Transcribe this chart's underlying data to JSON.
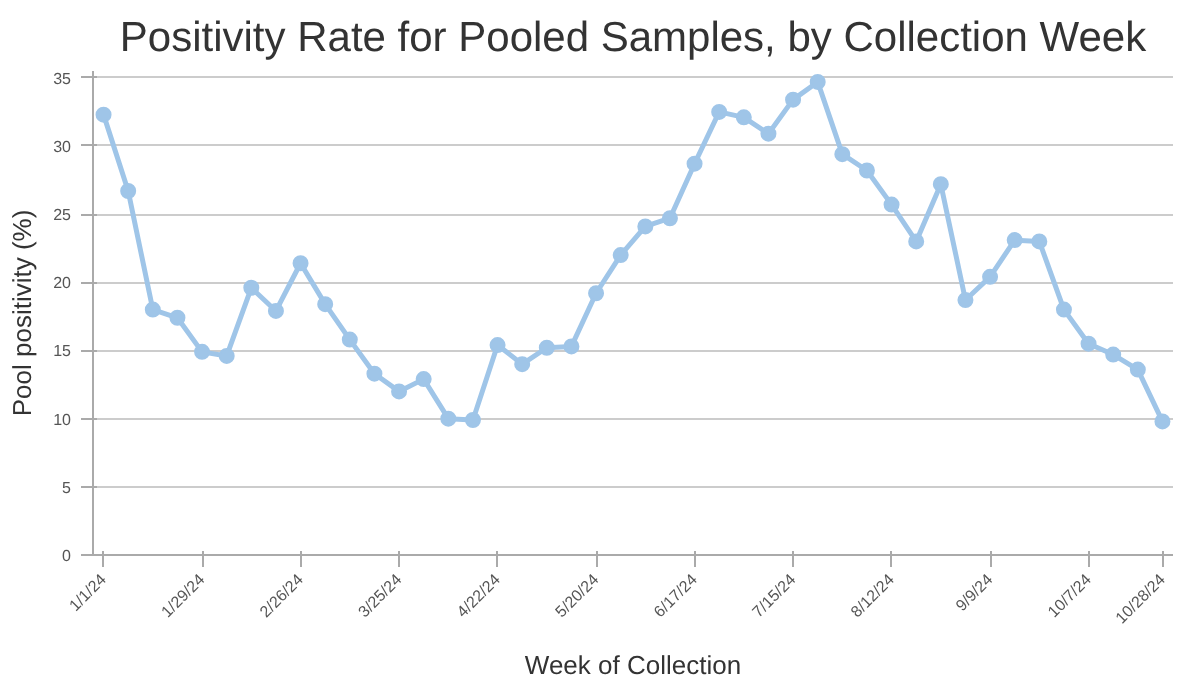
{
  "chart_data": {
    "type": "line",
    "title": "Positivity Rate for Pooled Samples, by Collection Week",
    "xlabel": "Week of Collection",
    "ylabel": "Pool positivity (%)",
    "x": [
      "2024-01-01",
      "2024-01-08",
      "2024-01-15",
      "2024-01-22",
      "2024-01-29",
      "2024-02-05",
      "2024-02-12",
      "2024-02-19",
      "2024-02-26",
      "2024-03-04",
      "2024-03-11",
      "2024-03-18",
      "2024-03-25",
      "2024-04-01",
      "2024-04-08",
      "2024-04-15",
      "2024-04-22",
      "2024-04-29",
      "2024-05-06",
      "2024-05-13",
      "2024-05-20",
      "2024-05-27",
      "2024-06-03",
      "2024-06-10",
      "2024-06-17",
      "2024-06-24",
      "2024-07-01",
      "2024-07-08",
      "2024-07-15",
      "2024-07-22",
      "2024-07-29",
      "2024-08-05",
      "2024-08-12",
      "2024-08-19",
      "2024-08-26",
      "2024-09-02",
      "2024-09-09",
      "2024-09-16",
      "2024-09-23",
      "2024-09-30",
      "2024-10-07",
      "2024-10-14",
      "2024-10-21",
      "2024-10-28"
    ],
    "series": [
      {
        "color": "#9fc5e8",
        "values": [
          32.3,
          26.7,
          18.0,
          17.4,
          14.9,
          14.6,
          19.6,
          17.9,
          21.4,
          18.4,
          15.8,
          13.3,
          12.0,
          12.9,
          10.0,
          9.9,
          15.4,
          14.0,
          15.2,
          15.3,
          19.2,
          22.0,
          24.1,
          24.7,
          28.7,
          32.5,
          32.1,
          30.9,
          33.4,
          34.7,
          29.4,
          28.2,
          25.7,
          23.0,
          27.2,
          18.7,
          20.4,
          23.1,
          23.0,
          18.0,
          15.5,
          14.7,
          13.6,
          9.8
        ]
      }
    ],
    "xlim": [
      "2023-12-29",
      "2024-10-31"
    ],
    "xticks": [
      {
        "value": "2024-01-01",
        "label": "1/1/24"
      },
      {
        "value": "2024-01-29",
        "label": "1/29/24"
      },
      {
        "value": "2024-02-26",
        "label": "2/26/24"
      },
      {
        "value": "2024-03-25",
        "label": "3/25/24"
      },
      {
        "value": "2024-04-22",
        "label": "4/22/24"
      },
      {
        "value": "2024-05-20",
        "label": "5/20/24"
      },
      {
        "value": "2024-06-17",
        "label": "6/17/24"
      },
      {
        "value": "2024-07-15",
        "label": "7/15/24"
      },
      {
        "value": "2024-08-12",
        "label": "8/12/24"
      },
      {
        "value": "2024-09-09",
        "label": "9/9/24"
      },
      {
        "value": "2024-10-07",
        "label": "10/7/24"
      },
      {
        "value": "2024-10-28",
        "label": "10/28/24"
      }
    ],
    "ylim": [
      0,
      35.5
    ],
    "yticks": [
      0,
      5,
      10,
      15,
      20,
      25,
      30,
      35
    ],
    "grid": "y",
    "marker": "circle",
    "line_style": "solid"
  }
}
